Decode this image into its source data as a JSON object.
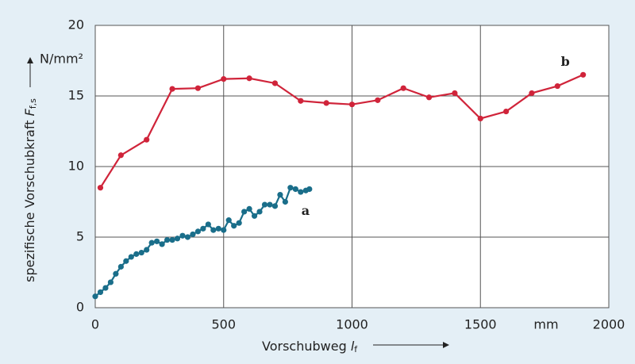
{
  "chart_data": {
    "type": "line",
    "y_label": "spezifische Vorschubkraft",
    "y_symbol": "F",
    "y_symbol_sub": "f,s",
    "y_unit": "N/mm²",
    "x_label": "Vorschubweg",
    "x_symbol": "l",
    "x_symbol_sub": "f",
    "x_unit": "mm",
    "xlim": [
      0,
      2000
    ],
    "xticks": [
      0,
      500,
      1000,
      1500,
      2000
    ],
    "ylim": [
      0,
      20
    ],
    "yticks": [
      0,
      5,
      10,
      15,
      20
    ],
    "grid": true,
    "series": [
      {
        "name": "b",
        "color": "#d0243a",
        "x": [
          20,
          100,
          200,
          300,
          400,
          500,
          600,
          700,
          800,
          900,
          1000,
          1100,
          1200,
          1300,
          1400,
          1500,
          1600,
          1700,
          1800,
          1900
        ],
        "values": [
          8.5,
          10.8,
          11.9,
          15.5,
          15.55,
          16.2,
          16.25,
          15.9,
          14.65,
          14.5,
          14.4,
          14.7,
          15.55,
          14.9,
          15.2,
          13.4,
          13.9,
          15.2,
          15.7,
          16.5
        ]
      },
      {
        "name": "a",
        "color": "#1a6e8a",
        "x": [
          0,
          20,
          40,
          60,
          80,
          100,
          120,
          140,
          160,
          180,
          200,
          220,
          240,
          260,
          280,
          300,
          320,
          340,
          360,
          380,
          400,
          420,
          440,
          460,
          480,
          500,
          520,
          540,
          560,
          580,
          600,
          620,
          640,
          660,
          680,
          700,
          720,
          740,
          760,
          780,
          800,
          820,
          834
        ],
        "values": [
          0.8,
          1.1,
          1.4,
          1.8,
          2.4,
          2.9,
          3.3,
          3.6,
          3.8,
          3.9,
          4.1,
          4.6,
          4.7,
          4.5,
          4.8,
          4.8,
          4.9,
          5.1,
          5.0,
          5.2,
          5.4,
          5.6,
          5.9,
          5.5,
          5.6,
          5.5,
          6.2,
          5.8,
          6.0,
          6.8,
          7.0,
          6.5,
          6.8,
          7.3,
          7.3,
          7.2,
          8.0,
          7.5,
          8.5,
          8.4,
          8.2,
          8.3,
          8.4
        ]
      }
    ]
  }
}
